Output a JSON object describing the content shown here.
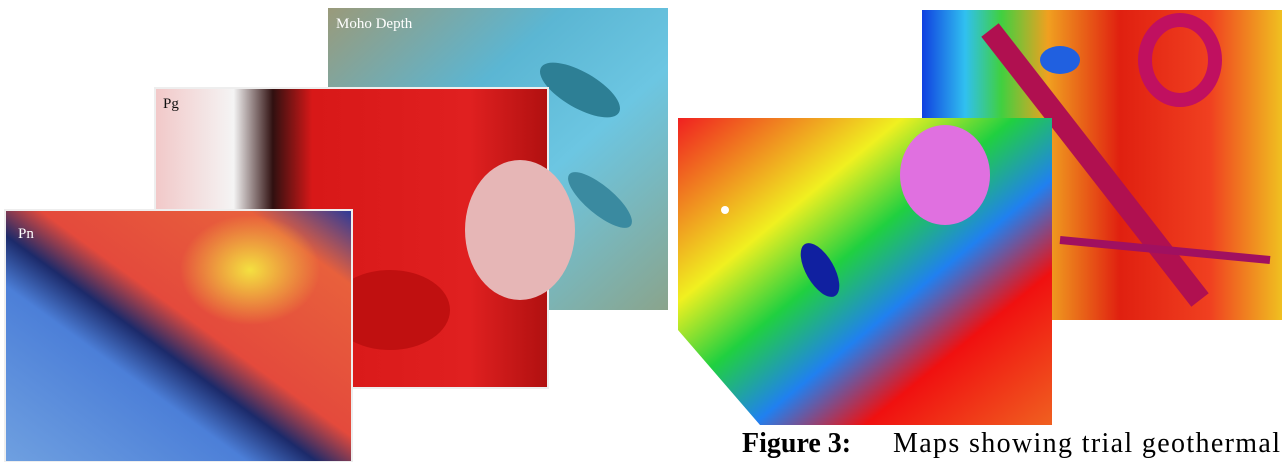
{
  "figure": {
    "panels": [
      {
        "label": "Moho Depth"
      },
      {
        "label": "Pg"
      },
      {
        "label": "Pn"
      }
    ],
    "caption": {
      "label": "Figure 3:",
      "text": "Maps showing trial geothermal"
    }
  }
}
